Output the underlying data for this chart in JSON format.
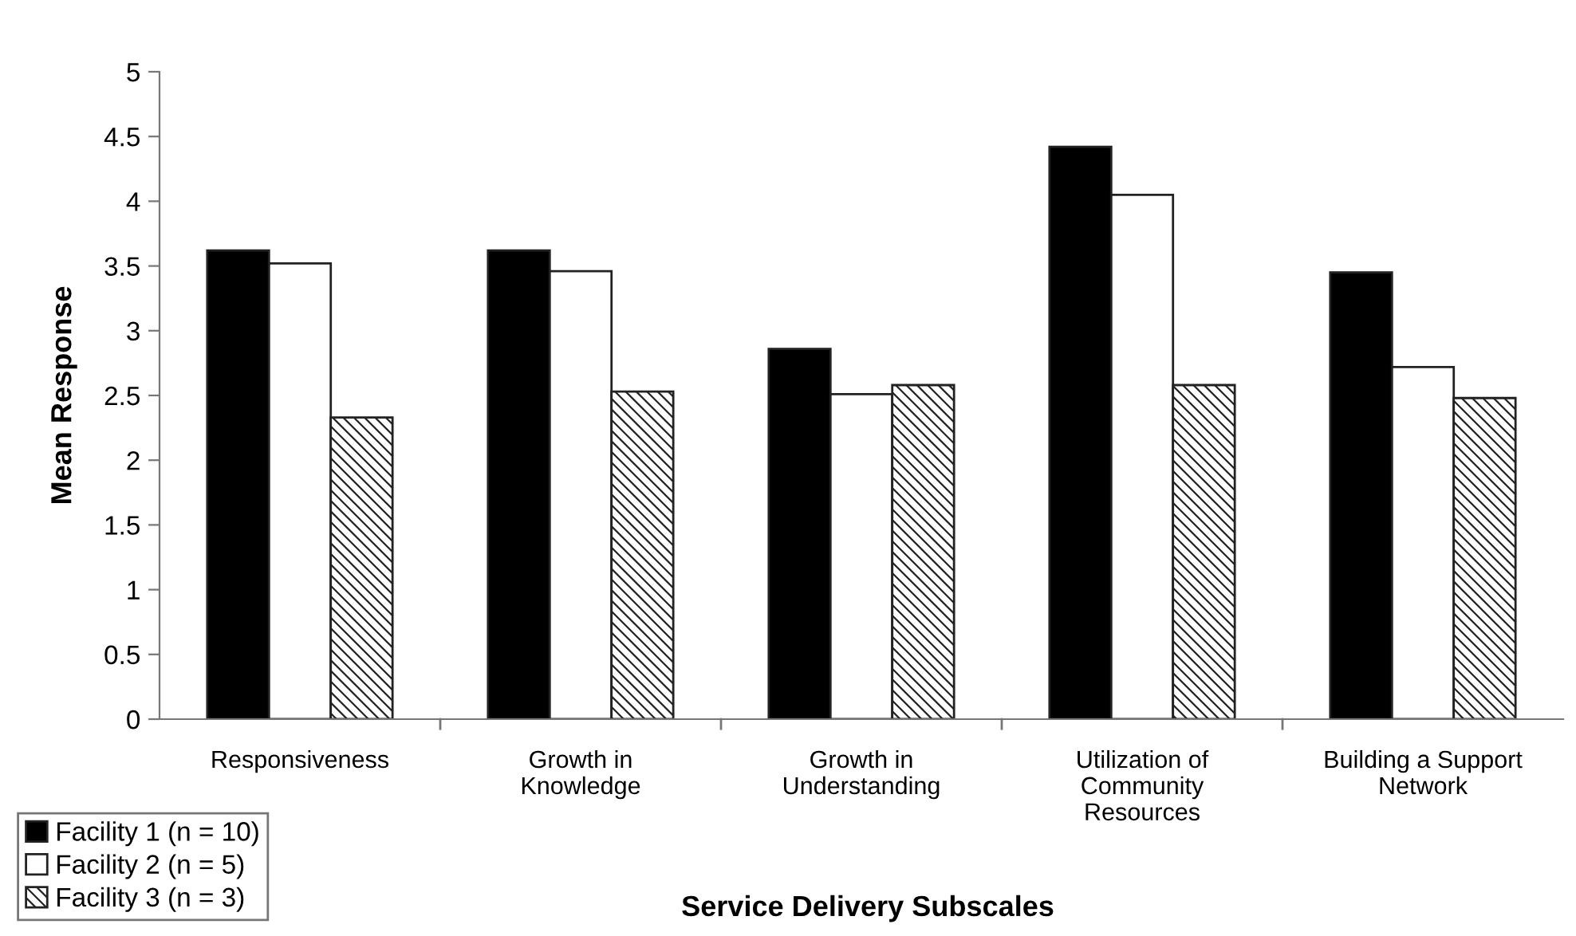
{
  "chart_data": {
    "type": "bar",
    "xlabel": "Service Delivery Subscales",
    "ylabel": "Mean Response",
    "categories": [
      "Responsiveness",
      "Growth in\nKnowledge",
      "Growth in\nUnderstanding",
      "Utilization of\nCommunity\nResources",
      "Building a Support\nNetwork"
    ],
    "series": [
      {
        "name": "Facility 1 (n = 10)",
        "color": "#000000",
        "values": [
          3.62,
          3.62,
          2.86,
          4.42,
          3.45
        ]
      },
      {
        "name": "Facility 2 (n = 5)",
        "color": "#ffffff",
        "values": [
          3.52,
          3.46,
          2.51,
          4.05,
          2.72
        ]
      },
      {
        "name": "Facility 3 (n = 3)",
        "color": "#222222",
        "values": [
          2.33,
          2.53,
          2.58,
          2.58,
          2.48
        ]
      }
    ],
    "ylim": [
      0,
      5
    ],
    "yticks": [
      0,
      0.5,
      1,
      1.5,
      2,
      2.5,
      3,
      3.5,
      4,
      4.5,
      5
    ],
    "grid": false,
    "legend": "bottom left"
  }
}
